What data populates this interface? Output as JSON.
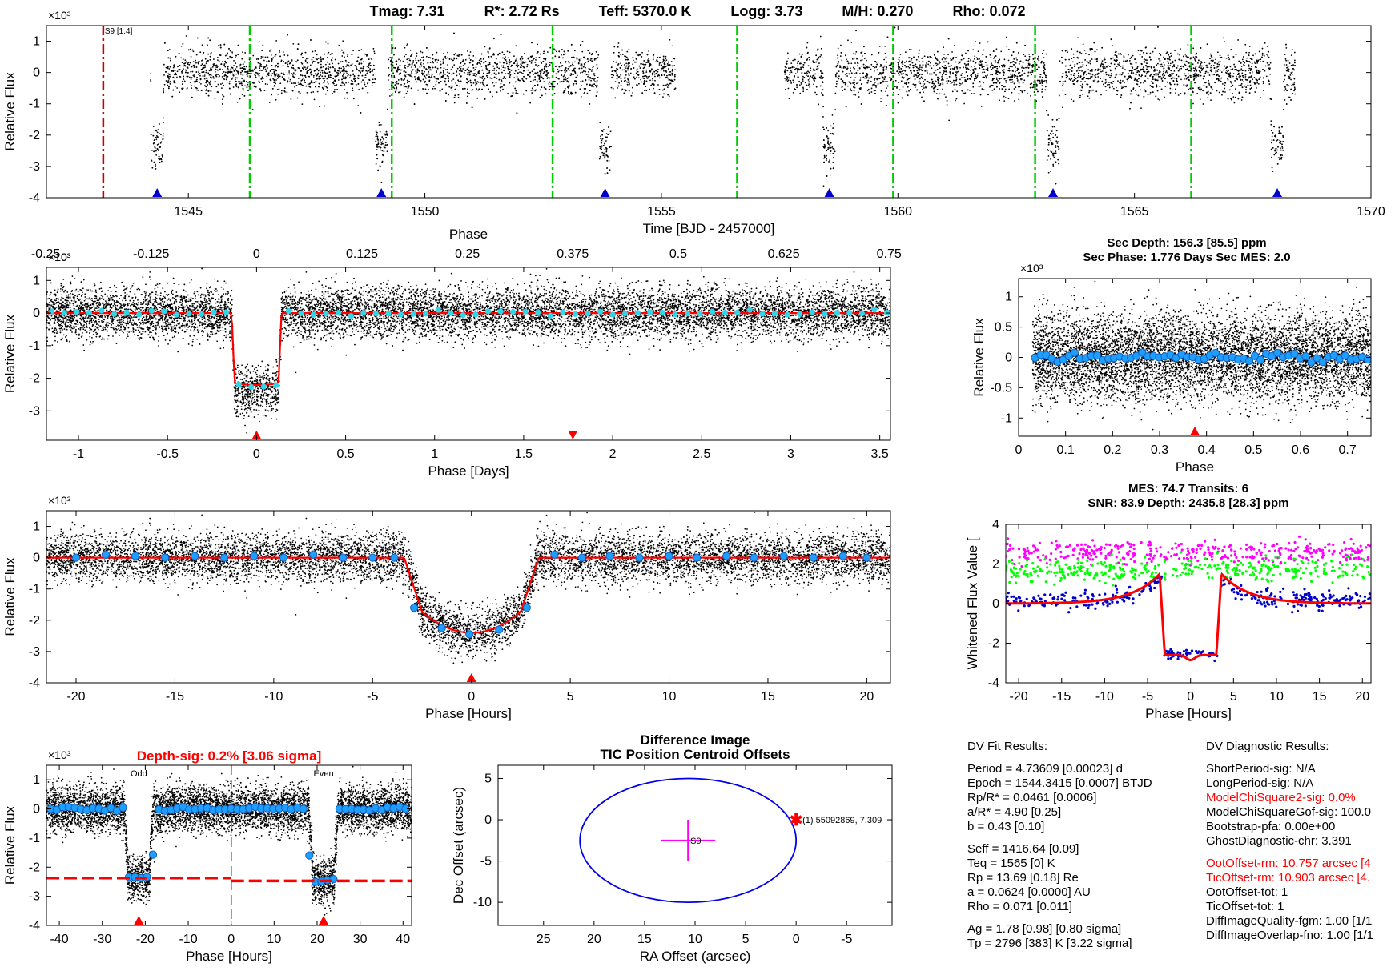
{
  "header": {
    "tmag": "Tmag: 7.31",
    "rstar": "R*: 2.72 Rs",
    "teff": "Teff: 5370.0 K",
    "logg": "Logg: 3.73",
    "mh": "M/H: 0.270",
    "rho": "Rho: 0.072"
  },
  "colors": {
    "data_points": "#000000",
    "model": "#ff0000",
    "binned_cyan": "#30d5e8",
    "binned_blue": "#1e90ff",
    "transit_marker": "#0000cc",
    "epoch_lines": "#00cc00",
    "momentum_dump": "#cc0000",
    "whitened_top": "#ff00ff",
    "whitened_mid": "#00ff00",
    "whitened_low": "#0000cc"
  },
  "chart_data": [
    {
      "id": "full_lightcurve",
      "type": "scatter",
      "title": "",
      "xlabel": "Time [BJD - 2457000]",
      "ylabel": "Relative Flux",
      "y_exponent": "×10³",
      "xlim": [
        1542,
        1570
      ],
      "ylim": [
        -4,
        1.5
      ],
      "xticks": [
        1545,
        1550,
        1555,
        1560,
        1565,
        1570
      ],
      "yticks": [
        1,
        0,
        -1,
        -2,
        -3,
        -4
      ],
      "transit_times": [
        1544.34,
        1549.08,
        1553.81,
        1558.55,
        1563.28,
        1568.02
      ],
      "transit_depth": -2.4,
      "epoch_lines": [
        1546.3,
        1549.3,
        1552.7,
        1556.6,
        1559.9,
        1562.9,
        1566.2
      ],
      "momentum_dump": 1543.2,
      "sector_label": "S9 [1.4]",
      "data_gaps": [
        [
          1542,
          1544.2
        ],
        [
          1555.3,
          1557.6
        ],
        [
          1568.4,
          1570
        ]
      ]
    },
    {
      "id": "phase_days",
      "type": "scatter",
      "xlabel": "Phase [Days]",
      "ylabel": "Relative Flux",
      "top_axis_label": "Phase",
      "y_exponent": "×10³",
      "xlim": [
        -1.18,
        3.56
      ],
      "ylim": [
        -3.9,
        1.4
      ],
      "xticks": [
        -1,
        -0.5,
        0,
        0.5,
        1,
        1.5,
        2,
        2.5,
        3,
        3.5
      ],
      "xtick_labels": [
        "-1",
        "-0.5",
        "0",
        "0.5",
        "1",
        "1.5",
        "2",
        "2.5",
        "3",
        "3.5"
      ],
      "top_ticks": [
        -0.25,
        -0.125,
        0,
        0.125,
        0.25,
        0.375,
        0.5,
        0.625,
        0.75
      ],
      "top_tick_labels": [
        "-0.25",
        "-0.125",
        "0",
        "0.125",
        "0.25",
        "0.375",
        "0.5",
        "0.625",
        "0.75"
      ],
      "top_exponent": "×10³",
      "yticks": [
        1,
        0,
        -1,
        -2,
        -3
      ],
      "transit_depth": -2.4,
      "transit_half_width_days": 0.14,
      "primary_marker": 0,
      "secondary_marker": 1.776
    },
    {
      "id": "secondary",
      "type": "scatter",
      "title": "Sec Depth: 156.3 [85.5] ppm",
      "subtitle": "Sec Phase: 1.776 Days    Sec MES: 2.0",
      "xlabel": "Phase",
      "ylabel": "Relative Flux",
      "y_exponent": "×10³",
      "xlim": [
        0,
        0.75
      ],
      "ylim": [
        -1.3,
        1.3
      ],
      "xticks": [
        0,
        0.1,
        0.2,
        0.3,
        0.4,
        0.5,
        0.6,
        0.7
      ],
      "xtick_labels": [
        "0",
        "0.1",
        "0.2",
        "0.3",
        "0.4",
        "0.5",
        "0.6",
        "0.7"
      ],
      "yticks": [
        1,
        0.5,
        0,
        -0.5,
        -1
      ],
      "ytick_labels": [
        "1",
        "0.5",
        "0",
        "-0.5",
        "-1"
      ],
      "marker": 0.375
    },
    {
      "id": "phase_hours",
      "type": "scatter",
      "xlabel": "Phase [Hours]",
      "ylabel": "Relative Flux",
      "y_exponent": "×10³",
      "xlim": [
        -21.5,
        21.2
      ],
      "ylim": [
        -4,
        1.5
      ],
      "xticks": [
        -20,
        -15,
        -10,
        -5,
        0,
        5,
        10,
        15,
        20
      ],
      "yticks": [
        1,
        0,
        -1,
        -2,
        -3,
        -4
      ],
      "transit_depth": -2.4,
      "transit_half_width_hours": 3.4,
      "binned": [
        [
          -20,
          0.0
        ],
        [
          -18.5,
          0.1
        ],
        [
          -17,
          0.05
        ],
        [
          -15.5,
          0.0
        ],
        [
          -14,
          0.05
        ],
        [
          -12.5,
          0.0
        ],
        [
          -11,
          0.05
        ],
        [
          -9.5,
          0.0
        ],
        [
          -8,
          0.1
        ],
        [
          -6.5,
          0.0
        ],
        [
          -5,
          0.0
        ],
        [
          -3.9,
          0.0
        ],
        [
          -2.9,
          -1.6
        ],
        [
          -1.5,
          -2.25
        ],
        [
          -0.1,
          -2.45
        ],
        [
          1.4,
          -2.3
        ],
        [
          2.8,
          -1.6
        ],
        [
          4.2,
          0.1
        ],
        [
          5.6,
          0.0
        ],
        [
          7,
          0.05
        ],
        [
          8.5,
          0.0
        ],
        [
          10,
          0.05
        ],
        [
          11.4,
          0.0
        ],
        [
          12.9,
          0.05
        ],
        [
          14.3,
          0.0
        ],
        [
          15.8,
          0.05
        ],
        [
          17.3,
          0.0
        ],
        [
          18.8,
          0.05
        ],
        [
          20,
          0.0
        ]
      ],
      "marker": 0
    },
    {
      "id": "whitened",
      "type": "scatter",
      "title": "MES: 74.7   Transits: 6",
      "subtitle": "SNR: 83.9    Depth: 2435.8 [28.3] ppm",
      "xlabel": "Phase [Hours]",
      "ylabel": "Whitened Flux Value [",
      "xlim": [
        -21.5,
        21
      ],
      "ylim": [
        -4,
        4
      ],
      "xticks": [
        -20,
        -15,
        -10,
        -5,
        0,
        5,
        10,
        15,
        20
      ],
      "yticks": [
        4,
        2,
        0,
        -2,
        -4
      ],
      "series": [
        {
          "offset": 2.6,
          "color": "#ff00ff"
        },
        {
          "offset": 1.7,
          "color": "#00ff00"
        },
        {
          "offset": 0.0,
          "color": "#0000cc"
        }
      ]
    },
    {
      "id": "odd_even",
      "type": "scatter",
      "title": "Depth-sig: 0.2% [3.06 sigma]",
      "xlabel": "Phase [Hours]",
      "ylabel": "Relative Flux",
      "y_exponent": "×10³",
      "xlim": [
        -43,
        42
      ],
      "ylim": [
        -4,
        1.5
      ],
      "xticks": [
        -40,
        -30,
        -20,
        -10,
        0,
        10,
        20,
        30,
        40
      ],
      "yticks": [
        1,
        0,
        -1,
        -2,
        -3,
        -4
      ],
      "odd_label": "Odd",
      "even_label": "Even",
      "odd_center": -21.5,
      "even_center": 21.5,
      "odd_depth": -2.37,
      "even_depth": -2.47
    },
    {
      "id": "centroid",
      "type": "scatter",
      "title": "Difference Image",
      "subtitle": "TIC Position Centroid Offsets",
      "xlabel": "RA Offset (arcsec)",
      "ylabel": "Dec Offset (arcsec)",
      "xlim": [
        29.5,
        -9.5
      ],
      "ylim": [
        -12.8,
        6.6
      ],
      "xticks": [
        25,
        20,
        15,
        10,
        5,
        0,
        -5
      ],
      "yticks": [
        5,
        0,
        -5,
        -10
      ],
      "ellipse": {
        "cx": 10.7,
        "cy": -2.5,
        "rx": 10.7,
        "ry": 7.5
      },
      "cross": {
        "x": 10.7,
        "y": -2.5,
        "dx": 2.7,
        "dy": 2.5,
        "label": "S9"
      },
      "star": {
        "x": 0,
        "y": 0,
        "label": "(1) 55092869, 7.309"
      }
    }
  ],
  "fit_results": {
    "heading": "DV Fit Results:",
    "group1": [
      "Period = 4.73609 [0.00023] d",
      "Epoch = 1544.3415 [0.0007] BTJD",
      "Rp/R* = 0.0461 [0.0006]",
      "a/R* = 4.90 [0.25]",
      "b = 0.43 [0.10]"
    ],
    "group2": [
      "Seff = 1416.64 [0.09]",
      "Teq = 1565 [0] K",
      "Rp = 13.69 [0.18] Re",
      "a = 0.0624 [0.0000] AU",
      "Rho = 0.071 [0.011]"
    ],
    "group3": [
      "Ag = 1.78 [0.98]  [0.80 sigma]",
      "Tp = 2796 [383] K  [3.22 sigma]"
    ]
  },
  "diagnostics": {
    "heading": "DV Diagnostic Results:",
    "group1": [
      {
        "text": "ShortPeriod-sig: N/A",
        "alert": false
      },
      {
        "text": "LongPeriod-sig: N/A",
        "alert": false
      },
      {
        "text": "ModelChiSquare2-sig: 0.0%",
        "alert": true
      },
      {
        "text": "ModelChiSquareGof-sig: 100.0",
        "alert": false
      },
      {
        "text": "Bootstrap-pfa: 0.00e+00",
        "alert": false
      },
      {
        "text": "GhostDiagnostic-chr: 3.391",
        "alert": false
      }
    ],
    "group2": [
      {
        "text": "OotOffset-rm: 10.757 arcsec [4",
        "alert": true
      },
      {
        "text": "TicOffset-rm: 10.903 arcsec [4.",
        "alert": true
      },
      {
        "text": "OotOffset-tot: 1",
        "alert": false
      },
      {
        "text": "TicOffset-tot: 1",
        "alert": false
      },
      {
        "text": "DiffImageQuality-fgm: 1.00 [1/1",
        "alert": false
      },
      {
        "text": "DiffImageOverlap-fno: 1.00 [1/1",
        "alert": false
      }
    ]
  }
}
